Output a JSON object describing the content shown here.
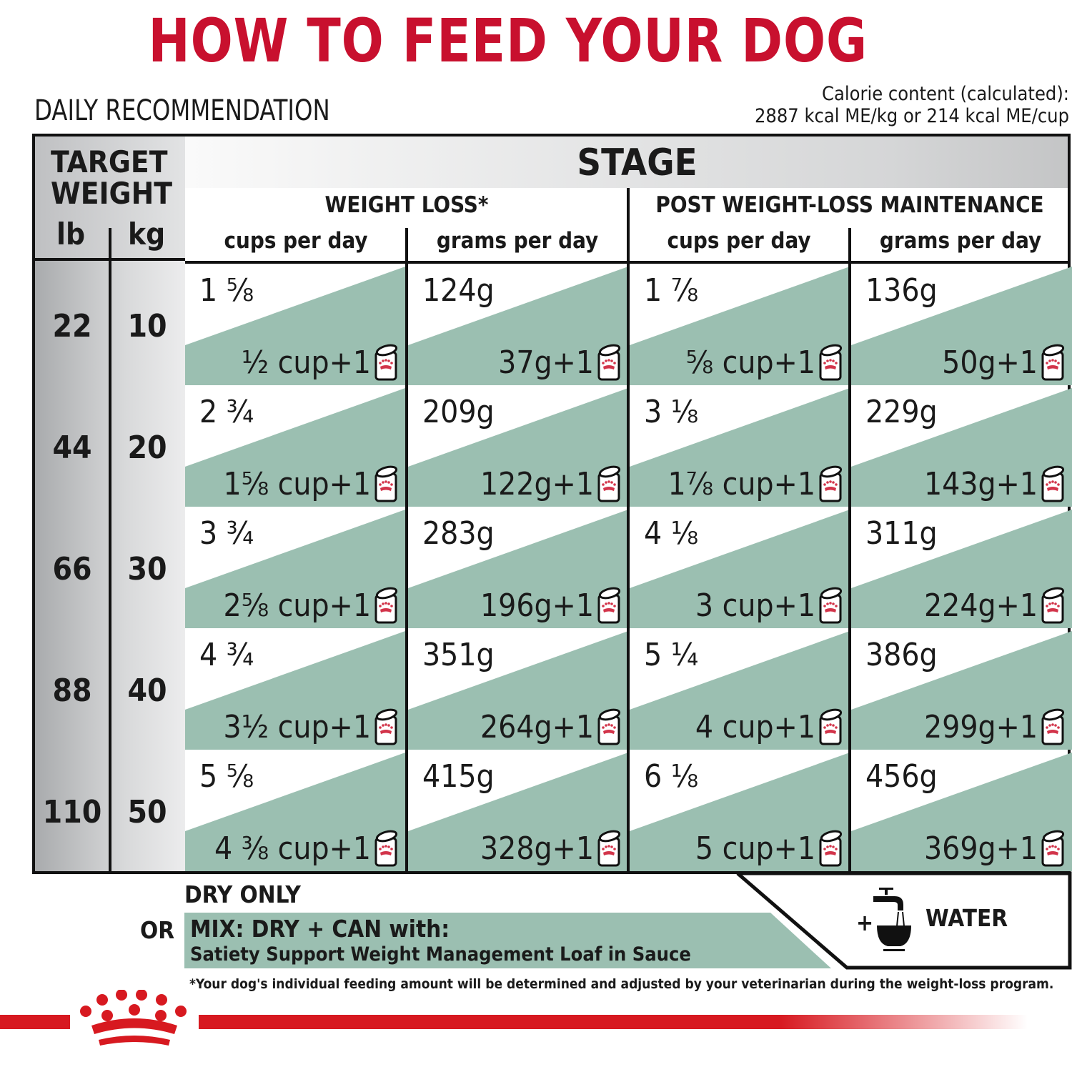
{
  "title": "HOW TO FEED YOUR DOG",
  "subtitle": "DAILY RECOMMENDATION",
  "calorie": {
    "line1": "Calorie content (calculated):",
    "line2": "2887 kcal ME/kg or 214 kcal ME/cup"
  },
  "header": {
    "target_weight_line1": "TARGET",
    "target_weight_line2": "WEIGHT",
    "lb": "lb",
    "kg": "kg",
    "stage": "STAGE",
    "groups": [
      "WEIGHT LOSS*",
      "POST WEIGHT-LOSS MAINTENANCE"
    ],
    "subcolumns": [
      "cups per day",
      "grams per day",
      "cups per day",
      "grams per day"
    ]
  },
  "rows": [
    {
      "lb": "22",
      "kg": "10",
      "cells": [
        {
          "dry": "1 ⅝",
          "mix": "½ cup+1"
        },
        {
          "dry": "124g",
          "mix": "37g+1"
        },
        {
          "dry": "1 ⅞",
          "mix": "⅝ cup+1"
        },
        {
          "dry": "136g",
          "mix": "50g+1"
        }
      ]
    },
    {
      "lb": "44",
      "kg": "20",
      "cells": [
        {
          "dry": "2 ¾",
          "mix": "1⅝ cup+1"
        },
        {
          "dry": "209g",
          "mix": "122g+1"
        },
        {
          "dry": "3 ⅛",
          "mix": "1⅞ cup+1"
        },
        {
          "dry": "229g",
          "mix": "143g+1"
        }
      ]
    },
    {
      "lb": "66",
      "kg": "30",
      "cells": [
        {
          "dry": "3 ¾",
          "mix": "2⅝ cup+1"
        },
        {
          "dry": "283g",
          "mix": "196g+1"
        },
        {
          "dry": "4 ⅛",
          "mix": "3 cup+1"
        },
        {
          "dry": "311g",
          "mix": "224g+1"
        }
      ]
    },
    {
      "lb": "88",
      "kg": "40",
      "cells": [
        {
          "dry": "4 ¾",
          "mix": "3½ cup+1"
        },
        {
          "dry": "351g",
          "mix": "264g+1"
        },
        {
          "dry": "5 ¼",
          "mix": "4 cup+1"
        },
        {
          "dry": "386g",
          "mix": "299g+1"
        }
      ]
    },
    {
      "lb": "110",
      "kg": "50",
      "cells": [
        {
          "dry": "5 ⅝",
          "mix": "4 ⅜ cup+1"
        },
        {
          "dry": "415g",
          "mix": "328g+1"
        },
        {
          "dry": "6 ⅛",
          "mix": "5 cup+1"
        },
        {
          "dry": "456g",
          "mix": "369g+1"
        }
      ]
    }
  ],
  "legend": {
    "dry_only": "DRY ONLY",
    "or": "OR",
    "mix_line1": "MIX: DRY + CAN with:",
    "mix_line2": "Satiety Support Weight Management Loaf in Sauce",
    "plus": "+",
    "water": "WATER"
  },
  "footnote": "*Your dog's individual feeding amount will be determined and adjusted by your veterinarian during the weight-loss program.",
  "icons": {
    "can": "can-icon",
    "water": "water-tap-icon",
    "logo": "royal-canin-crown-logo"
  },
  "colors": {
    "title_red": "#c8102e",
    "teal": "#9bbfb1",
    "brand_red": "#d71920"
  }
}
